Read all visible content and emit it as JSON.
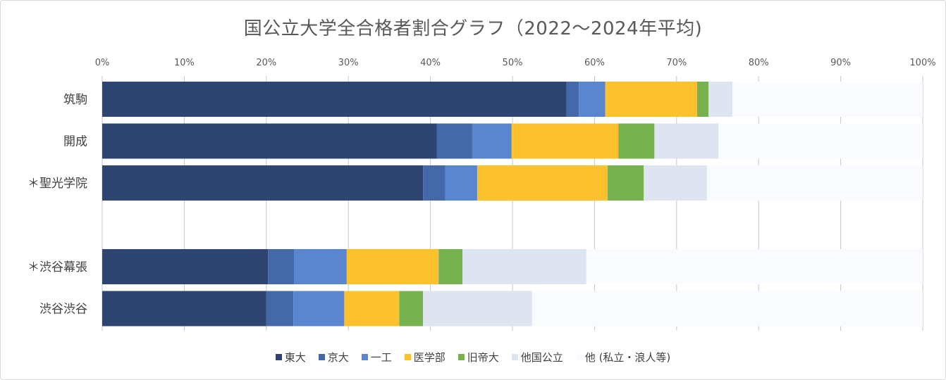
{
  "chart_data": {
    "type": "bar",
    "orientation": "horizontal",
    "stacked": true,
    "title": "国公立大学全合格者割合グラフ（2022〜2024年平均)",
    "x_ticks": [
      "0%",
      "10%",
      "20%",
      "30%",
      "40%",
      "50%",
      "60%",
      "70%",
      "80%",
      "90%",
      "100%"
    ],
    "xlim": [
      0,
      100
    ],
    "grid": "vertical",
    "legend_position": "bottom",
    "categories": [
      "筑駒",
      "開成",
      "＊聖光学院",
      "",
      "＊渋谷幕張",
      "渋谷渋谷"
    ],
    "series": [
      {
        "name": "東大",
        "color": "#2e4471",
        "values": [
          56.6,
          40.8,
          39.1,
          null,
          20.2,
          20.0
        ]
      },
      {
        "name": "京大",
        "color": "#4468a8",
        "values": [
          1.5,
          4.3,
          2.7,
          null,
          3.2,
          3.3
        ]
      },
      {
        "name": "一工",
        "color": "#5a86cf",
        "values": [
          3.2,
          4.8,
          3.9,
          null,
          6.4,
          6.2
        ]
      },
      {
        "name": "医学部",
        "color": "#fcc22e",
        "values": [
          11.2,
          13.0,
          15.9,
          null,
          11.2,
          6.7
        ]
      },
      {
        "name": "旧帝大",
        "color": "#78b250",
        "values": [
          1.4,
          4.4,
          4.4,
          null,
          2.9,
          2.9
        ]
      },
      {
        "name": "他国公立",
        "color": "#dee5f1",
        "values": [
          2.9,
          7.8,
          7.7,
          null,
          15.1,
          13.3
        ]
      },
      {
        "name": "他 (私立・浪人等)",
        "color": "#fafbfe",
        "values": [
          23.2,
          24.9,
          26.3,
          null,
          41.0,
          47.6
        ]
      }
    ]
  }
}
